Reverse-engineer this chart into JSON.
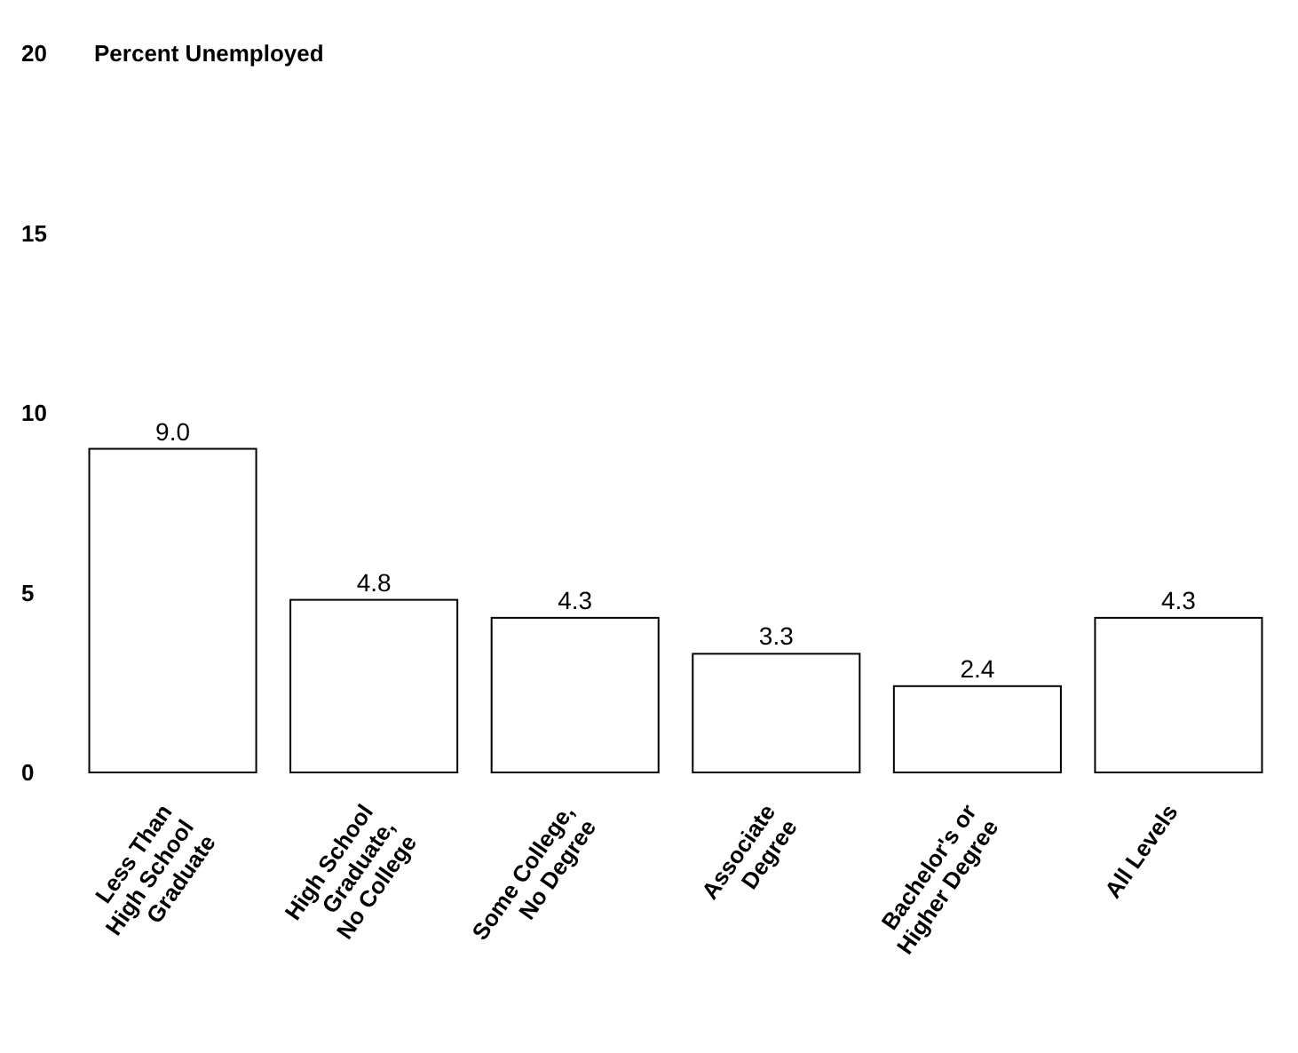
{
  "chart_data": {
    "type": "bar",
    "ylabel": "Percent Unemployed",
    "categories": [
      "Less Than\nHigh School\nGraduate",
      "High School\nGraduate,\nNo College",
      "Some College,\nNo Degree",
      "Associate\nDegree",
      "Bachelor's or\nHigher Degree",
      "All Levels"
    ],
    "values": [
      9.0,
      4.8,
      4.3,
      3.3,
      2.4,
      4.3
    ],
    "value_labels": [
      "9.0",
      "4.8",
      "4.3",
      "3.3",
      "2.4",
      "4.3"
    ],
    "color": "#ffffff",
    "ylim": [
      0,
      20
    ],
    "yticks": [
      0,
      5,
      10,
      15,
      20
    ],
    "grid": false
  }
}
